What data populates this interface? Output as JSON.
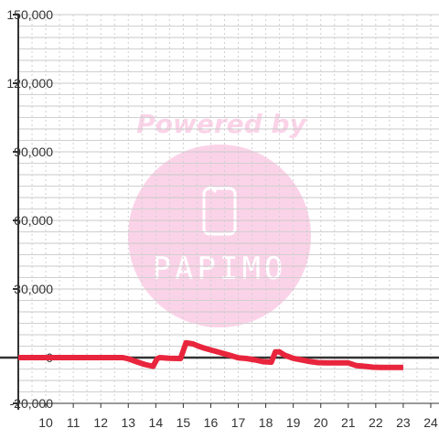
{
  "watermark": {
    "text": "Powered by",
    "logo_text": "PAPIMO",
    "colors": {
      "text": "#fbd3e8",
      "disc": "#fbd3e8",
      "logo": "#ffffff"
    }
  },
  "colors": {
    "line": "#e8253c",
    "axis": "#333333",
    "grid_major": "#c8c8c8",
    "grid_minor": "#d0d0d0",
    "zero_line": "#333333",
    "label": "#333333"
  },
  "chart_data": {
    "type": "line",
    "title": "",
    "xlabel": "",
    "ylabel": "",
    "xlim": [
      9,
      24.3
    ],
    "ylim": [
      -20000,
      150000
    ],
    "grid": true,
    "legend": "none",
    "x_ticks": [
      "10",
      "11",
      "12",
      "13",
      "14",
      "15",
      "16",
      "17",
      "18",
      "19",
      "20",
      "21",
      "22",
      "23",
      "24"
    ],
    "y_ticks": [
      "150,000",
      "120,000",
      "90,000",
      "60,000",
      "30,000",
      "0",
      "-20,000"
    ],
    "y_tick_values": [
      150000,
      120000,
      90000,
      60000,
      30000,
      0,
      -20000
    ],
    "series": [
      {
        "name": "",
        "color": "#e8253c",
        "x": [
          9,
          12.8,
          13.0,
          13.3,
          13.6,
          13.9,
          14.05,
          14.15,
          14.5,
          14.9,
          15.1,
          15.35,
          15.6,
          15.8,
          16.1,
          16.4,
          16.7,
          17.0,
          17.3,
          17.6,
          17.9,
          18.2,
          18.35,
          18.5,
          18.7,
          19.0,
          19.3,
          19.6,
          19.9,
          20.2,
          20.5,
          20.8,
          21.0,
          21.3,
          21.6,
          21.9,
          22.2,
          22.5,
          22.8,
          23.0
        ],
        "y": [
          0,
          0,
          -500,
          -1800,
          -3000,
          -3800,
          -500,
          0,
          -300,
          -400,
          6500,
          6000,
          4800,
          4000,
          3000,
          2000,
          1000,
          -100,
          -400,
          -1000,
          -1800,
          -2000,
          2500,
          2500,
          1000,
          -300,
          -1000,
          -1700,
          -2200,
          -2300,
          -2300,
          -2300,
          -2300,
          -3500,
          -3800,
          -4200,
          -4300,
          -4300,
          -4300,
          -4300
        ]
      }
    ]
  }
}
